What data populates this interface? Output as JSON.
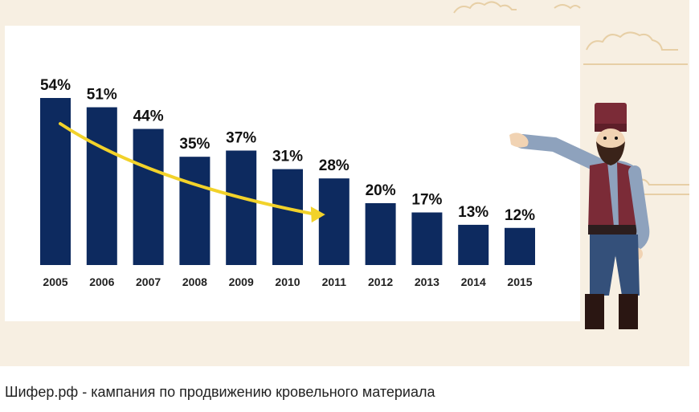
{
  "caption": "Шифер.рф - кампания по продвижению кровельного материала",
  "colors": {
    "bar": "#0d2a5f",
    "trend_arrow": "#f2d22a",
    "background": "#f7efe2",
    "board": "#ffffff"
  },
  "chart_data": {
    "type": "bar",
    "title": "",
    "xlabel": "",
    "ylabel": "",
    "categories": [
      "2005",
      "2006",
      "2007",
      "2008",
      "2009",
      "2010",
      "2011",
      "2012",
      "2013",
      "2014",
      "2015"
    ],
    "values": [
      54,
      51,
      44,
      35,
      37,
      31,
      28,
      20,
      17,
      13,
      12
    ],
    "value_labels": [
      "54%",
      "51%",
      "44%",
      "35%",
      "37%",
      "31%",
      "28%",
      "20%",
      "17%",
      "13%",
      "12%"
    ],
    "ylim": [
      0,
      54
    ],
    "grid": false,
    "legend": "none",
    "annotation": {
      "type": "trend-arrow",
      "from": "2005",
      "to": "2011"
    }
  }
}
